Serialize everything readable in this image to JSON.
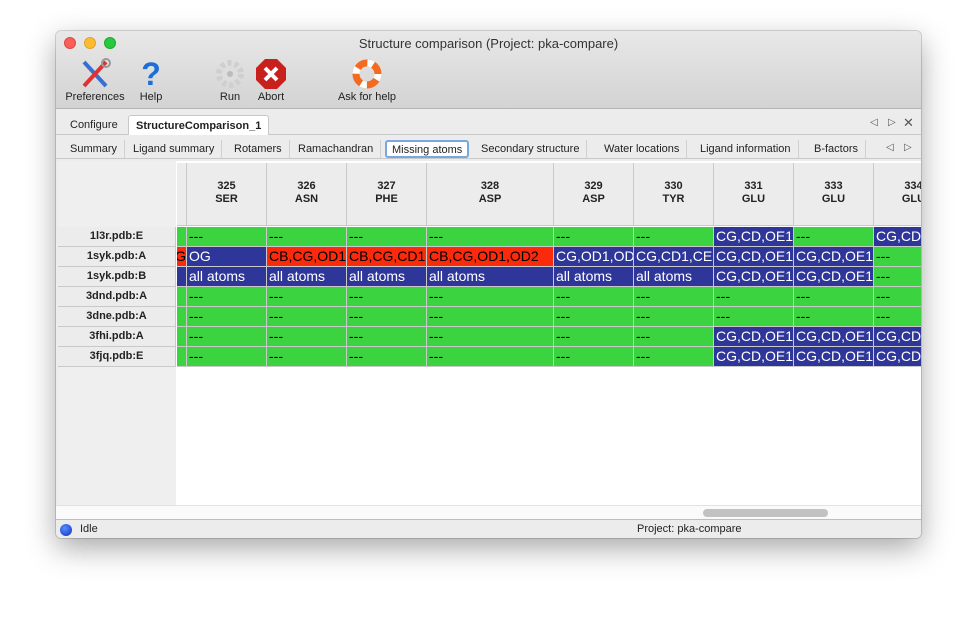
{
  "window": {
    "title": "Structure comparison (Project: pka-compare)"
  },
  "toolbar": [
    {
      "label": "Preferences",
      "icon": "tools-icon"
    },
    {
      "label": "Help",
      "icon": "help-icon"
    },
    {
      "label": "Run",
      "icon": "gear-icon"
    },
    {
      "label": "Abort",
      "icon": "abort-icon"
    },
    {
      "label": "Ask for help",
      "icon": "lifebuoy-icon"
    }
  ],
  "main_tabs": [
    {
      "label": "Configure"
    },
    {
      "label": "StructureComparison_1",
      "active": true
    }
  ],
  "sub_tabs": [
    {
      "label": "Summary"
    },
    {
      "label": "Ligand summary"
    },
    {
      "label": "Rotamers"
    },
    {
      "label": "Ramachandran"
    },
    {
      "label": "Missing atoms",
      "active": true
    },
    {
      "label": "Secondary structure"
    },
    {
      "label": "Water locations"
    },
    {
      "label": "Ligand information"
    },
    {
      "label": "B-factors"
    }
  ],
  "colors": {
    "none": "#3bd33f",
    "partial": "#fa2a0a",
    "missing": "#2f369a"
  },
  "table": {
    "columns": [
      {
        "num": "",
        "res": ""
      },
      {
        "num": "325",
        "res": "SER"
      },
      {
        "num": "326",
        "res": "ASN"
      },
      {
        "num": "327",
        "res": "PHE"
      },
      {
        "num": "328",
        "res": "ASP"
      },
      {
        "num": "329",
        "res": "ASP"
      },
      {
        "num": "330",
        "res": "TYR"
      },
      {
        "num": "331",
        "res": "GLU"
      },
      {
        "num": "333",
        "res": "GLU"
      },
      {
        "num": "334",
        "res": "GLU"
      }
    ],
    "rows": [
      {
        "label": "1l3r.pdb:E",
        "cells": [
          [
            "",
            "none"
          ],
          [
            "---",
            "none"
          ],
          [
            "---",
            "none"
          ],
          [
            "---",
            "none"
          ],
          [
            "---",
            "none"
          ],
          [
            "---",
            "none"
          ],
          [
            "---",
            "none"
          ],
          [
            "CG,CD,OE1",
            "missing"
          ],
          [
            "---",
            "none"
          ],
          [
            "CG,CD",
            "missing"
          ]
        ]
      },
      {
        "label": "1syk.pdb:A",
        "cells": [
          [
            "G",
            "partial"
          ],
          [
            "OG",
            "missing"
          ],
          [
            "CB,CG,OD1",
            "partial"
          ],
          [
            "CB,CG,CD1",
            "partial"
          ],
          [
            "CB,CG,OD1,OD2",
            "partial"
          ],
          [
            "CG,OD1,OD",
            "missing"
          ],
          [
            "CG,CD1,CE",
            "missing"
          ],
          [
            "CG,CD,OE1",
            "missing"
          ],
          [
            "CG,CD,OE1",
            "missing"
          ],
          [
            "---",
            "none"
          ]
        ]
      },
      {
        "label": "1syk.pdb:B",
        "cells": [
          [
            "",
            "missing"
          ],
          [
            "all atoms",
            "missing"
          ],
          [
            "all atoms",
            "missing"
          ],
          [
            "all atoms",
            "missing"
          ],
          [
            "all atoms",
            "missing"
          ],
          [
            "all atoms",
            "missing"
          ],
          [
            "all atoms",
            "missing"
          ],
          [
            "CG,CD,OE1",
            "missing"
          ],
          [
            "CG,CD,OE1",
            "missing"
          ],
          [
            "---",
            "none"
          ]
        ]
      },
      {
        "label": "3dnd.pdb:A",
        "cells": [
          [
            "",
            "none"
          ],
          [
            "---",
            "none"
          ],
          [
            "---",
            "none"
          ],
          [
            "---",
            "none"
          ],
          [
            "---",
            "none"
          ],
          [
            "---",
            "none"
          ],
          [
            "---",
            "none"
          ],
          [
            "---",
            "none"
          ],
          [
            "---",
            "none"
          ],
          [
            "---",
            "none"
          ]
        ]
      },
      {
        "label": "3dne.pdb:A",
        "cells": [
          [
            "",
            "none"
          ],
          [
            "---",
            "none"
          ],
          [
            "---",
            "none"
          ],
          [
            "---",
            "none"
          ],
          [
            "---",
            "none"
          ],
          [
            "---",
            "none"
          ],
          [
            "---",
            "none"
          ],
          [
            "---",
            "none"
          ],
          [
            "---",
            "none"
          ],
          [
            "---",
            "none"
          ]
        ]
      },
      {
        "label": "3fhi.pdb:A",
        "cells": [
          [
            "",
            "none"
          ],
          [
            "---",
            "none"
          ],
          [
            "---",
            "none"
          ],
          [
            "---",
            "none"
          ],
          [
            "---",
            "none"
          ],
          [
            "---",
            "none"
          ],
          [
            "---",
            "none"
          ],
          [
            "CG,CD,OE1",
            "missing"
          ],
          [
            "CG,CD,OE1",
            "missing"
          ],
          [
            "CG,CD",
            "missing"
          ]
        ]
      },
      {
        "label": "3fjq.pdb:E",
        "cells": [
          [
            "",
            "none"
          ],
          [
            "---",
            "none"
          ],
          [
            "---",
            "none"
          ],
          [
            "---",
            "none"
          ],
          [
            "---",
            "none"
          ],
          [
            "---",
            "none"
          ],
          [
            "---",
            "none"
          ],
          [
            "CG,CD,OE1",
            "missing"
          ],
          [
            "CG,CD,OE1",
            "missing"
          ],
          [
            "CG,CD",
            "missing"
          ]
        ]
      }
    ]
  },
  "status": {
    "state": "Idle",
    "project": "Project: pka-compare"
  }
}
